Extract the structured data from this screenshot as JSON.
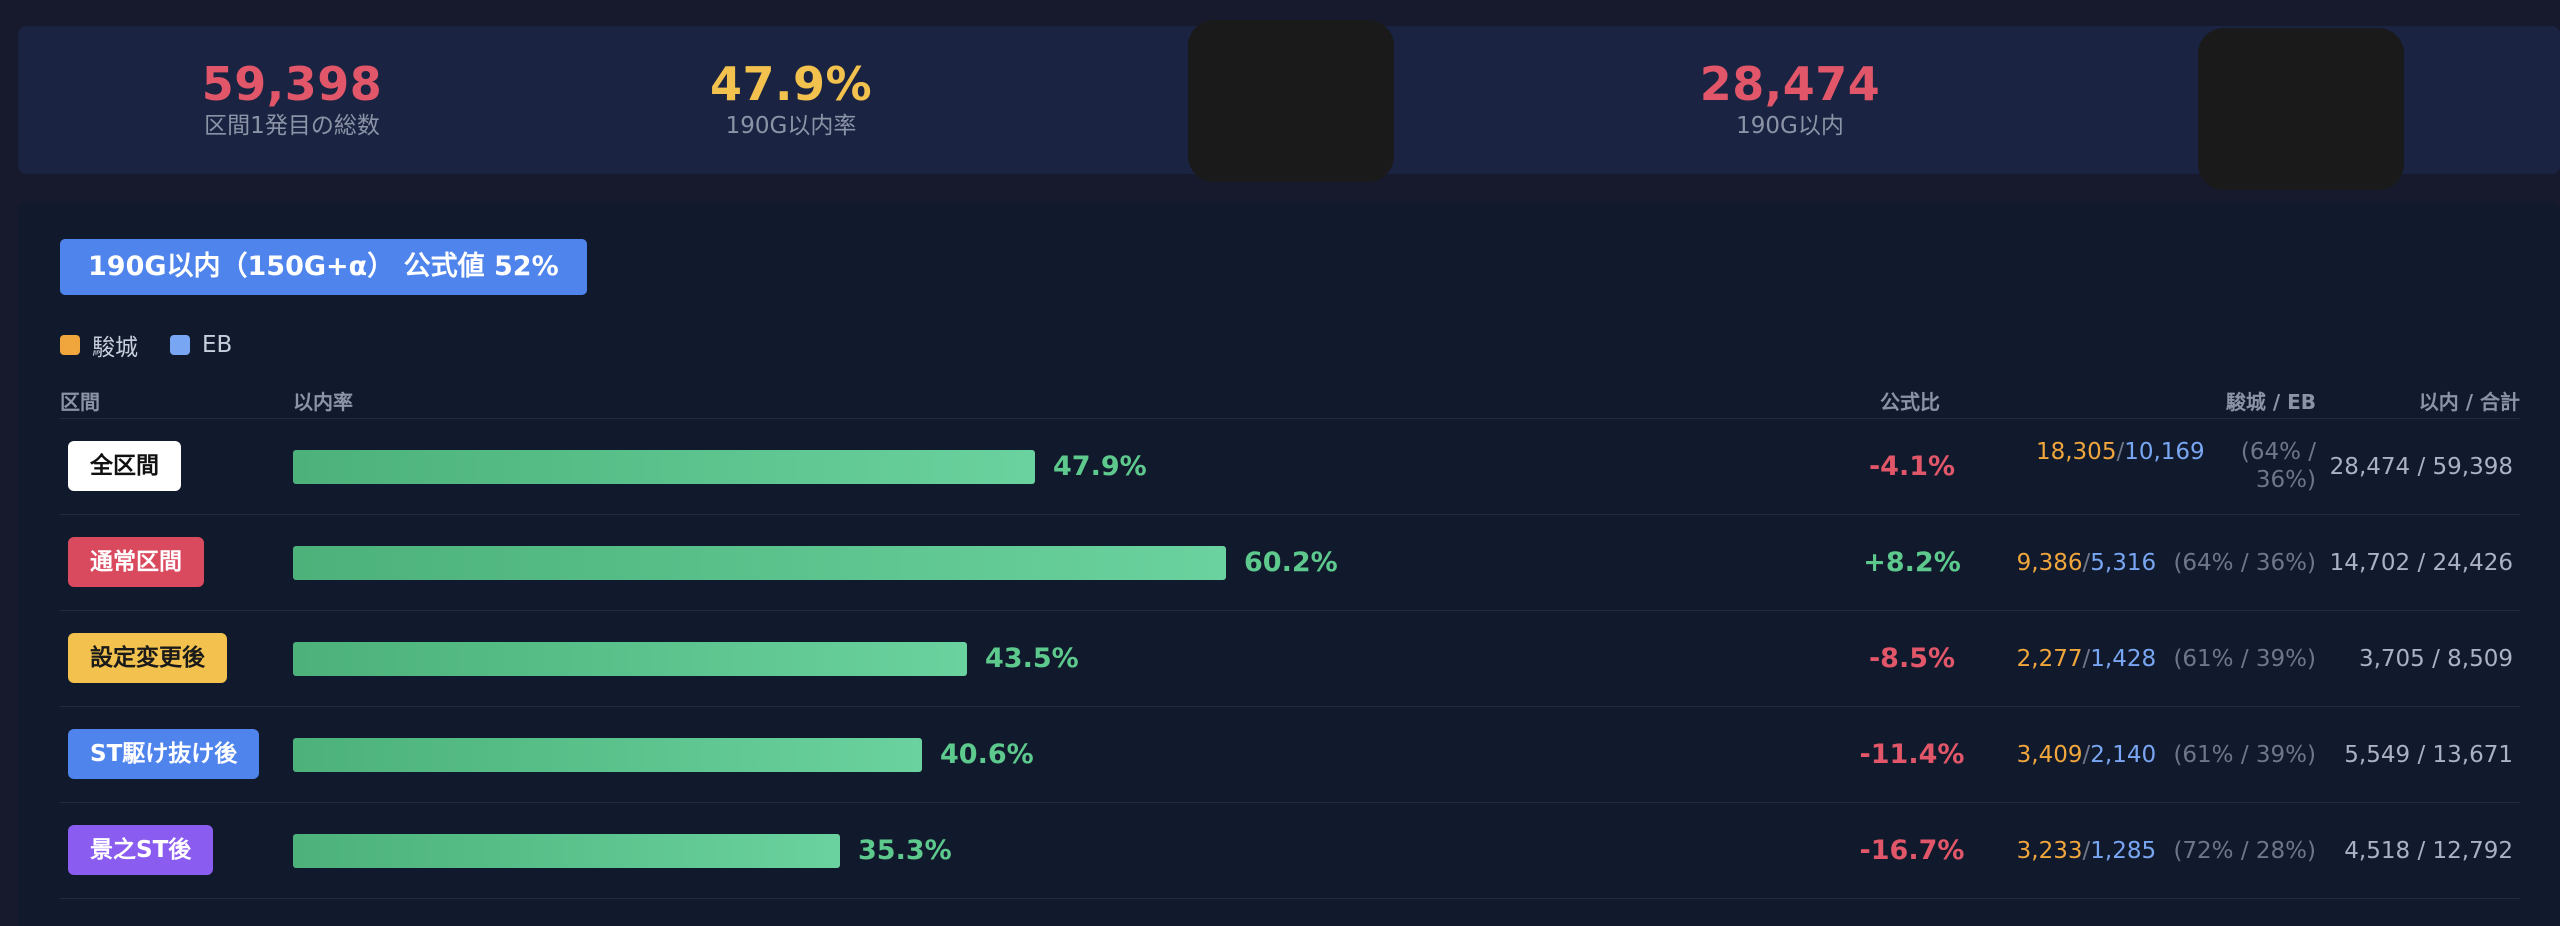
{
  "summary": {
    "total": {
      "value": "59,398",
      "label": "区間1発目の総数",
      "color": "#e15769"
    },
    "rate": {
      "value": "47.9%",
      "label": "190G以内率",
      "color": "#f2c14e"
    },
    "within": {
      "value": "28,474",
      "label": "190G以内",
      "color": "#e15769"
    }
  },
  "panel": {
    "title": "190G以内（150G+α） 公式値 52%",
    "legend": [
      {
        "label": "駿城",
        "color": "#f0a63c"
      },
      {
        "label": "EB",
        "color": "#79a6f2"
      }
    ],
    "columns": {
      "section": "区間",
      "rate": "以内率",
      "official_ratio": "公式比",
      "split": "駿城 / EB",
      "total": "以内 / 合計"
    },
    "rows": [
      {
        "section": "全区間",
        "badge_bg": "#ffffff",
        "badge_fg": "#111111",
        "rate": 47.9,
        "rate_text": "47.9%",
        "ratio": "-4.1%",
        "ratio_color": "#e15769",
        "shunjo": "18,305",
        "eb": "10,169",
        "split_pct": "(64% / 36%)",
        "within_total": "28,474 / 59,398"
      },
      {
        "section": "通常区間",
        "badge_bg": "#d94a5e",
        "badge_fg": "#ffffff",
        "rate": 60.2,
        "rate_text": "60.2%",
        "ratio": "+8.2%",
        "ratio_color": "#5dc98d",
        "shunjo": "9,386",
        "eb": "5,316",
        "split_pct": "(64% / 36%)",
        "within_total": "14,702 / 24,426"
      },
      {
        "section": "設定変更後",
        "badge_bg": "#f2c14e",
        "badge_fg": "#1a1a1a",
        "rate": 43.5,
        "rate_text": "43.5%",
        "ratio": "-8.5%",
        "ratio_color": "#e15769",
        "shunjo": "2,277",
        "eb": "1,428",
        "split_pct": "(61% / 39%)",
        "within_total": "3,705 / 8,509"
      },
      {
        "section": "ST駆け抜け後",
        "badge_bg": "#4f84ec",
        "badge_fg": "#ffffff",
        "rate": 40.6,
        "rate_text": "40.6%",
        "ratio": "-11.4%",
        "ratio_color": "#e15769",
        "shunjo": "3,409",
        "eb": "2,140",
        "split_pct": "(61% / 39%)",
        "within_total": "5,549 / 13,671"
      },
      {
        "section": "景之ST後",
        "badge_bg": "#8a5cf0",
        "badge_fg": "#ffffff",
        "rate": 35.3,
        "rate_text": "35.3%",
        "ratio": "-16.7%",
        "ratio_color": "#e15769",
        "shunjo": "3,233",
        "eb": "1,285",
        "split_pct": "(72% / 28%)",
        "within_total": "4,518 / 12,792"
      }
    ]
  }
}
